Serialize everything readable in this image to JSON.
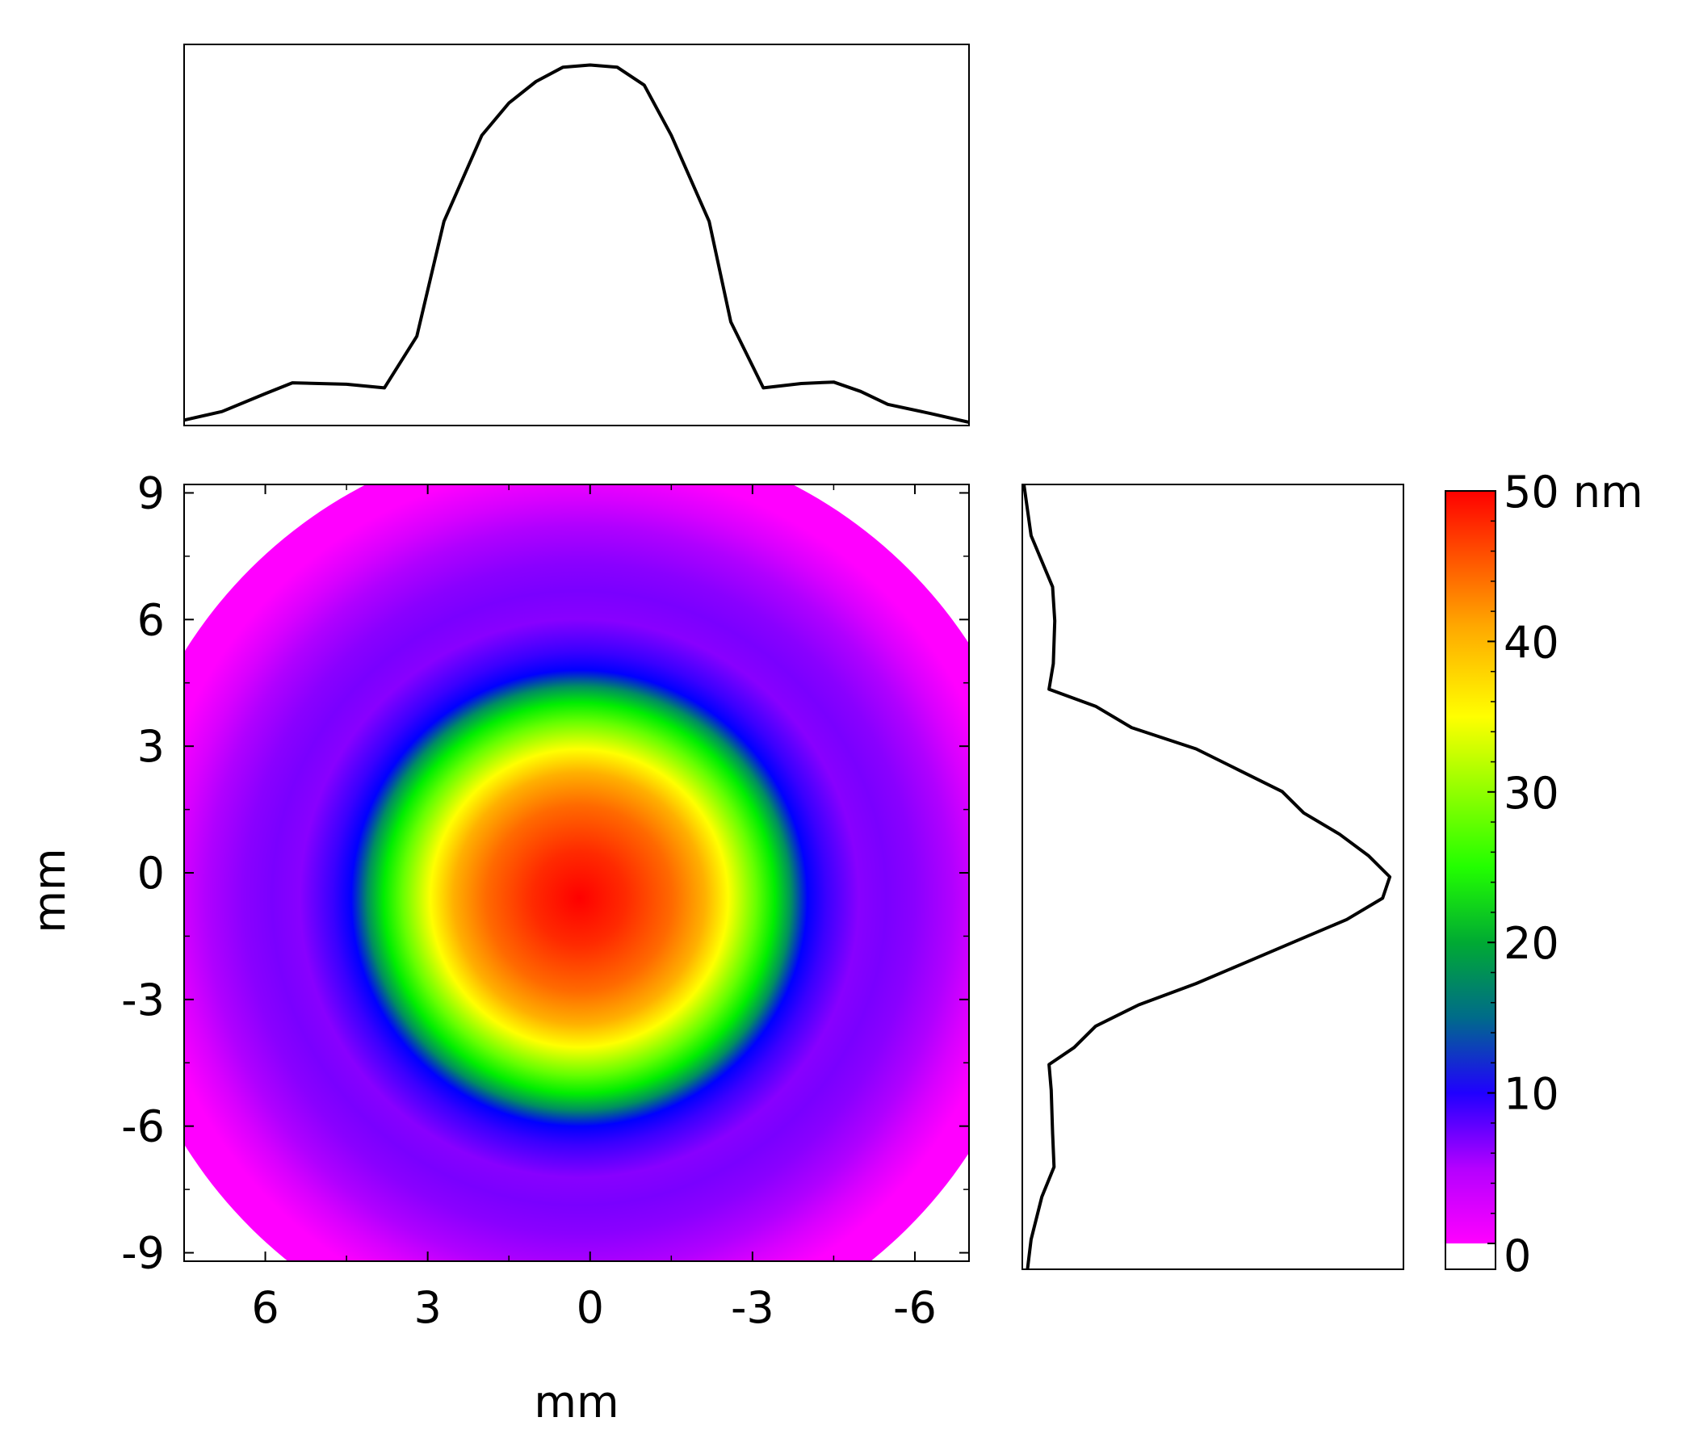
{
  "chart_data": {
    "type": "heatmap",
    "title": "",
    "xlabel": "mm",
    "ylabel": "mm",
    "xlim": [
      7.5,
      -7.0
    ],
    "ylim": [
      -9.2,
      9.2
    ],
    "x_ticks": [
      6,
      3,
      0,
      -3,
      -6
    ],
    "x_tick_labels": [
      "6",
      "3",
      "0",
      "-3",
      "-6"
    ],
    "y_ticks": [
      9,
      6,
      3,
      0,
      -3,
      -6,
      -9
    ],
    "y_tick_labels": [
      "9",
      "6",
      "3",
      "0",
      "-3",
      "-6",
      "-9"
    ],
    "surface": {
      "outer_radius_mm": 8.6,
      "center_mm": [
        0.2,
        -0.6
      ],
      "peak_nm": 50,
      "radial_profile": [
        {
          "r_mm": 0.0,
          "h_nm": 50
        },
        {
          "r_mm": 0.5,
          "h_nm": 49
        },
        {
          "r_mm": 1.0,
          "h_nm": 46
        },
        {
          "r_mm": 1.5,
          "h_nm": 42
        },
        {
          "r_mm": 2.0,
          "h_nm": 37
        },
        {
          "r_mm": 2.5,
          "h_nm": 30
        },
        {
          "r_mm": 3.0,
          "h_nm": 22
        },
        {
          "r_mm": 3.5,
          "h_nm": 13
        },
        {
          "r_mm": 4.0,
          "h_nm": 8
        },
        {
          "r_mm": 4.5,
          "h_nm": 6
        },
        {
          "r_mm": 5.5,
          "h_nm": 6
        },
        {
          "r_mm": 6.5,
          "h_nm": 5
        },
        {
          "r_mm": 7.2,
          "h_nm": 3
        },
        {
          "r_mm": 8.0,
          "h_nm": 1.5
        },
        {
          "r_mm": 8.6,
          "h_nm": 0.5
        }
      ]
    },
    "colorbar": {
      "min": 0,
      "max": 50,
      "unit": "nm",
      "ticks": [
        0,
        10,
        20,
        30,
        40,
        50
      ],
      "tick_labels": [
        "0",
        "10",
        "20",
        "30",
        "40",
        "50 nm"
      ],
      "colors": [
        "#ffffff",
        "#ff00ff",
        "#7a00ff",
        "#0000ff",
        "#00ff00",
        "#ffff00",
        "#ff8800",
        "#ff0000"
      ]
    },
    "x_profile": {
      "x_mm": [
        7.5,
        6.8,
        6.0,
        5.5,
        4.5,
        3.8,
        3.2,
        2.7,
        2.0,
        1.5,
        1.0,
        0.5,
        0.0,
        -0.5,
        -1.0,
        -1.5,
        -2.2,
        -2.6,
        -3.2,
        -3.9,
        -4.5,
        -5.0,
        -5.5,
        -6.3,
        -7.0
      ],
      "h_nm": [
        0.3,
        1.5,
        4.0,
        5.5,
        5.3,
        4.8,
        12,
        28,
        40,
        44.5,
        47.5,
        49.5,
        49.8,
        49.5,
        47,
        40,
        28,
        14,
        4.8,
        5.4,
        5.6,
        4.3,
        2.5,
        1.2,
        0.0
      ]
    },
    "y_profile": {
      "y_mm": [
        9.2,
        8.0,
        7.4,
        6.8,
        6.0,
        5.0,
        4.4,
        4.0,
        3.5,
        3.0,
        2.5,
        2.0,
        1.5,
        1.0,
        0.5,
        0.0,
        -0.5,
        -1.0,
        -1.5,
        -2.0,
        -2.5,
        -3.0,
        -3.5,
        -4.0,
        -4.4,
        -5.0,
        -6.0,
        -6.8,
        -7.5,
        -8.5,
        -9.2
      ],
      "h_nm": [
        0.0,
        1.0,
        2.5,
        4.0,
        4.3,
        4.1,
        3.5,
        10,
        15,
        24,
        30,
        36,
        39,
        44,
        48,
        51,
        50,
        45,
        38,
        31,
        24,
        16,
        10,
        7,
        3.5,
        3.8,
        4.0,
        4.2,
        2.5,
        1.0,
        0.5
      ]
    }
  }
}
